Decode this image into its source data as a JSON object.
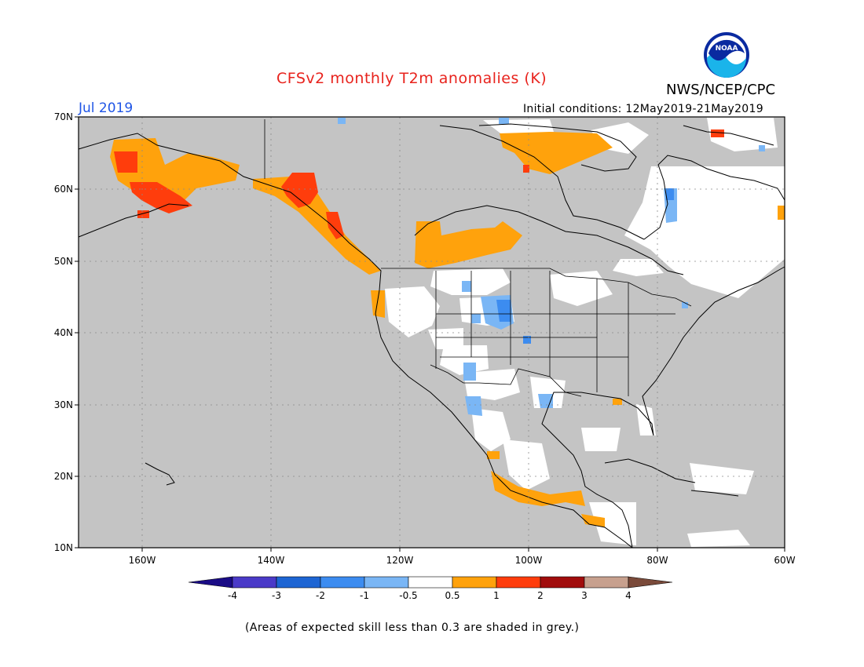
{
  "header": {
    "title": "CFSv2 monthly T2m anomalies (K)",
    "agency": "NWS/NCEP/CPC",
    "logo_text": "NOAA",
    "month": "Jul 2019",
    "initial_conditions": "Initial conditions: 12May2019-21May2019"
  },
  "map": {
    "lon_range": [
      -172,
      -60
    ],
    "lat_range": [
      10,
      70
    ],
    "lat_labels": [
      "70N",
      "60N",
      "50N",
      "40N",
      "30N",
      "20N",
      "10N"
    ],
    "lon_labels": [
      "160W",
      "140W",
      "120W",
      "100W",
      "80W",
      "60W"
    ],
    "grid": "dotted"
  },
  "colorbar": {
    "labels": [
      "-4",
      "-3",
      "-2",
      "-1",
      "-0.5",
      "0.5",
      "1",
      "2",
      "3",
      "4"
    ],
    "colors": [
      "#1a0c86",
      "#4a3ac8",
      "#1d65d3",
      "#3c8cf0",
      "#7ab6f5",
      "#ffffff",
      "#ffa20c",
      "#ff3d0c",
      "#a10c0c",
      "#c7a08e",
      "#7a4a3a"
    ]
  },
  "footnote": "(Areas of expected skill less than 0.3 are shaded in grey.)"
}
